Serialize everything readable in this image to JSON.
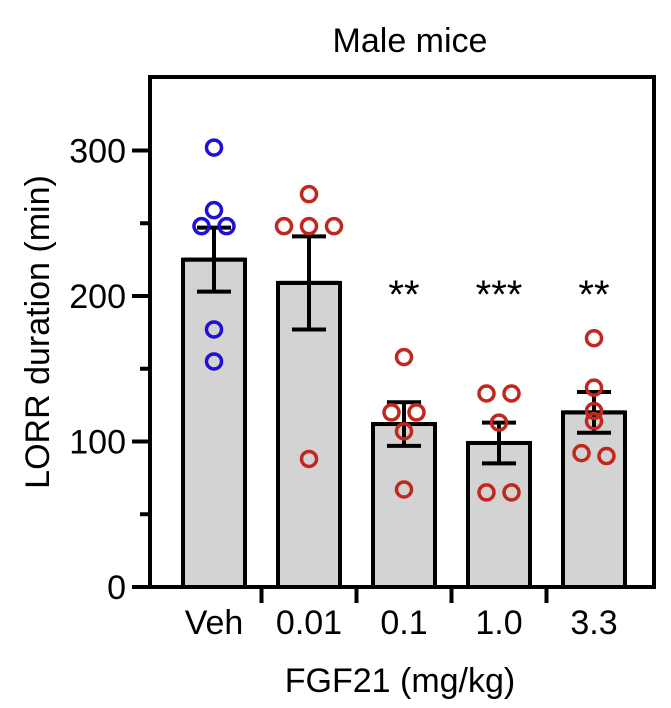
{
  "chart_data": {
    "type": "bar",
    "title": "Male mice",
    "xlabel": "FGF21 (mg/kg)",
    "ylabel": "LORR duration (min)",
    "ylim": [
      0,
      350
    ],
    "yticks": [
      0,
      100,
      200,
      300
    ],
    "yticks_minor": [
      50,
      150,
      250
    ],
    "categories": [
      "Veh",
      "0.01",
      "0.1",
      "1.0",
      "3.3"
    ],
    "means": [
      225,
      209,
      112,
      99,
      120
    ],
    "sem": [
      22,
      32,
      15,
      14,
      14
    ],
    "significance": [
      "",
      "",
      "**",
      "***",
      "**"
    ],
    "points": [
      [
        302,
        259,
        248,
        248,
        177,
        155
      ],
      [
        270,
        248,
        248,
        248,
        88
      ],
      [
        158,
        120,
        120,
        107,
        67
      ],
      [
        133,
        133,
        113,
        65,
        65
      ],
      [
        171,
        137,
        121,
        114,
        92,
        90
      ]
    ],
    "point_colors": [
      "#1e10d6",
      "#c0281e",
      "#c0281e",
      "#c0281e",
      "#c0281e"
    ],
    "bar_color": "#d3d3d3"
  }
}
